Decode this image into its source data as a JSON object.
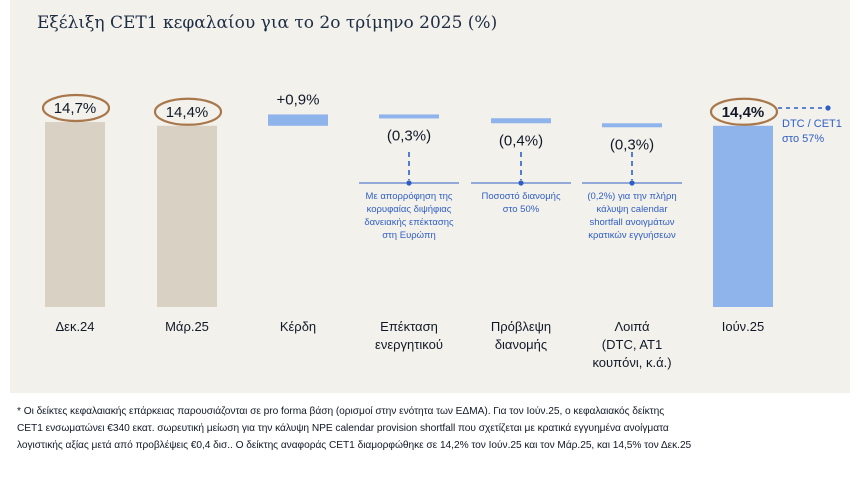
{
  "title": "Εξέλιξη CET1 κεφαλαίου για το 2ο τρίμηνο 2025 (%)",
  "colors": {
    "panel_bg": "#f3f1ec",
    "total_bar": "#d8d1c4",
    "highlight_bar": "#8fb3eb",
    "step_bar": "#8fb3eb",
    "circle": "#a8784c",
    "annotation": "#2f5fc4"
  },
  "chart_data": {
    "type": "bar",
    "subtype": "waterfall",
    "ylim": [
      0,
      15.5
    ],
    "grid": false,
    "categories": [
      [
        "Δεκ.24"
      ],
      [
        "Μάρ.25"
      ],
      [
        "Κέρδη"
      ],
      [
        "Επέκταση",
        "ενεργητικού"
      ],
      [
        "Πρόβλεψη",
        "διανομής"
      ],
      [
        "Λοιπά",
        "(DTC, AT1",
        "κουπόνι, κ.ά.)"
      ],
      [
        "Ιούν.25"
      ]
    ],
    "bars": [
      {
        "kind": "total",
        "value": 14.7,
        "label": "14,7%",
        "circled": true,
        "bold": false,
        "highlight": false
      },
      {
        "kind": "total",
        "value": 14.4,
        "label": "14,4%",
        "circled": true,
        "bold": false,
        "highlight": false
      },
      {
        "kind": "delta",
        "start": 14.4,
        "value": 0.9,
        "label": "+0,9%"
      },
      {
        "kind": "delta",
        "start": 15.3,
        "value": -0.3,
        "label": "(0,3%)"
      },
      {
        "kind": "delta",
        "start": 15.0,
        "value": -0.4,
        "label": "(0,4%)"
      },
      {
        "kind": "delta",
        "start": 14.6,
        "value": -0.3,
        "label": "(0,3%)"
      },
      {
        "kind": "total",
        "value": 14.4,
        "label": "14,4%",
        "circled": true,
        "bold": true,
        "highlight": true
      }
    ],
    "annotations": [
      {
        "bar_index": 3,
        "lines": [
          "Με απορρόφηση της",
          "κορυφαίας διψήφιας",
          "δανειακής επέκτασης",
          "στη Ευρώπη"
        ]
      },
      {
        "bar_index": 4,
        "lines": [
          "Ποσοστό διανομής",
          "στο 50%"
        ]
      },
      {
        "bar_index": 5,
        "lines": [
          "(0,2%) για την πλήρη",
          "κάλυψη calendar",
          "shortfall ανοιγμάτων",
          "κρατικών εγγυήσεων"
        ]
      }
    ],
    "side_note": {
      "bar_index": 6,
      "lines": [
        "DTC / CET1",
        "στο 57%"
      ]
    }
  },
  "footnote": [
    "* Οι δείκτες κεφαλαιακής επάρκειας παρουσιάζονται σε pro forma βάση (ορισμοί στην ενότητα των ΕΔΜΑ). Για τον Ιούν.25, ο κεφαλαιακός δείκτης",
    "CET1 ενσωματώνει €340 εκατ. σωρευτική μείωση για την κάλυψη NPE calendar provision shortfall που σχετίζεται με κρατικά εγγυημένα ανοίγματα",
    "λογιστικής αξίας μετά από προβλέψεις €0,4 δισ.. Ο δείκτης αναφοράς CET1 διαμορφώθηκε σε 14,2% τον Ιούν.25 και τον Μάρ.25, και 14,5% τον Δεκ.25"
  ]
}
